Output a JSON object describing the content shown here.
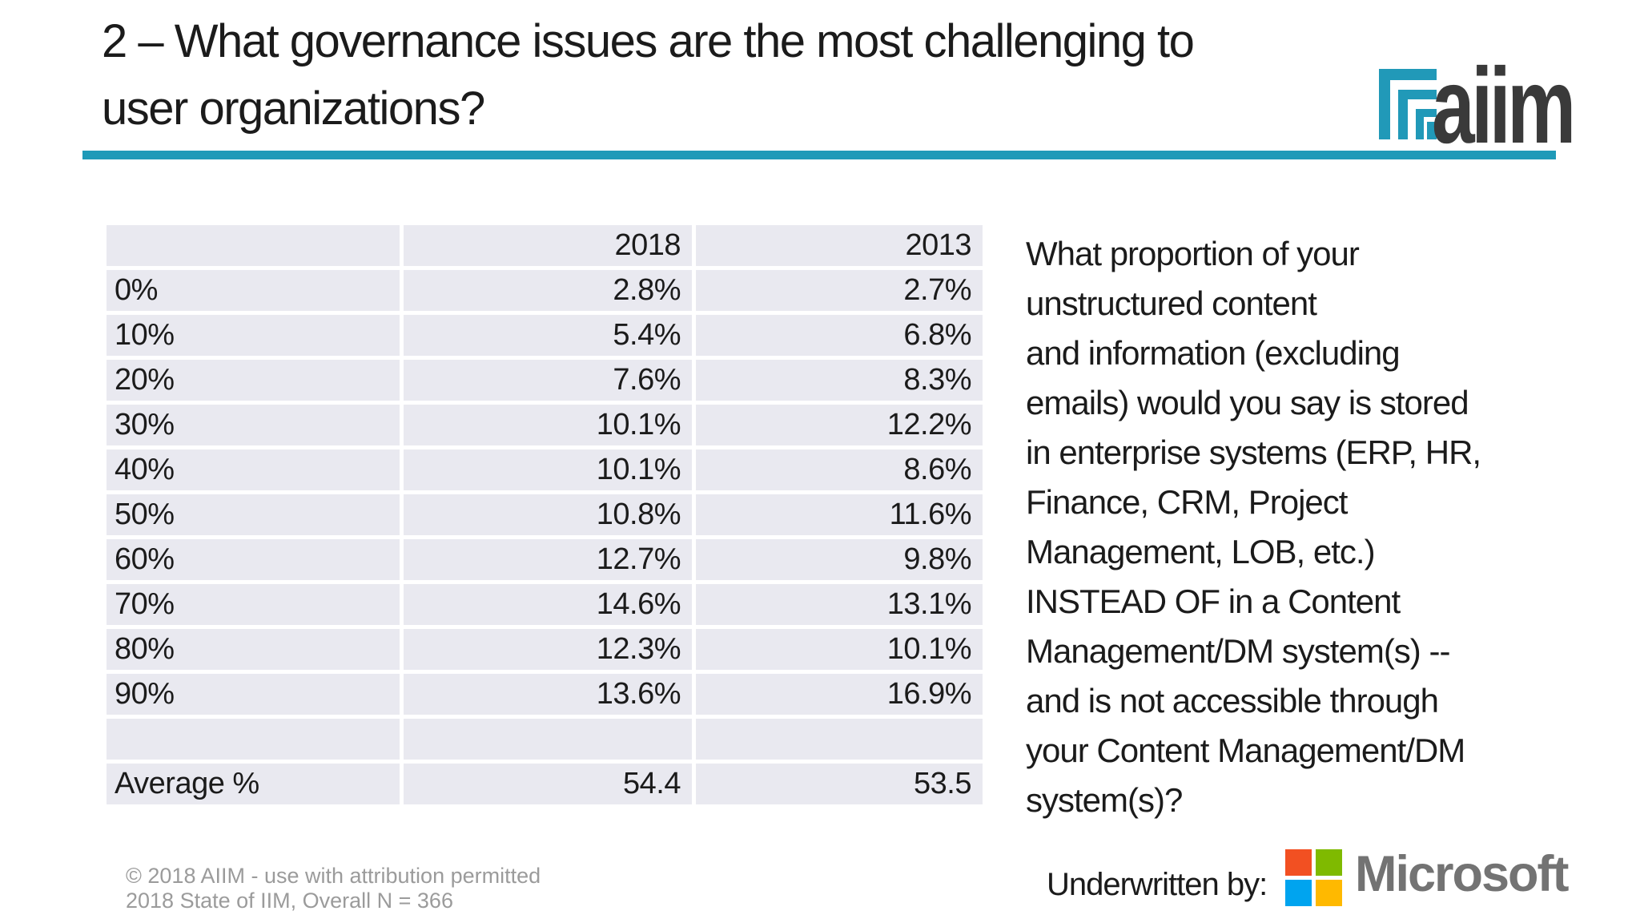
{
  "header": {
    "title": "2 – What governance issues are the most challenging to\nuser organizations?",
    "logo_wordmark": "aiim",
    "accent_color": "#1f9ab8",
    "logo_icon_color": "#2199b8",
    "logo_text_color": "#3a3a3a"
  },
  "table": {
    "cell_bg_color": "#e9e9f0",
    "columns": [
      "",
      "2018",
      "2013"
    ],
    "rows": [
      {
        "label": "0%",
        "y2018": "2.8%",
        "y2013": "2.7%"
      },
      {
        "label": "10%",
        "y2018": "5.4%",
        "y2013": "6.8%"
      },
      {
        "label": "20%",
        "y2018": "7.6%",
        "y2013": "8.3%"
      },
      {
        "label": "30%",
        "y2018": "10.1%",
        "y2013": "12.2%"
      },
      {
        "label": "40%",
        "y2018": "10.1%",
        "y2013": "8.6%"
      },
      {
        "label": "50%",
        "y2018": "10.8%",
        "y2013": "11.6%"
      },
      {
        "label": "60%",
        "y2018": "12.7%",
        "y2013": "9.8%"
      },
      {
        "label": "70%",
        "y2018": "14.6%",
        "y2013": "13.1%"
      },
      {
        "label": "80%",
        "y2018": "12.3%",
        "y2013": "10.1%"
      },
      {
        "label": "90%",
        "y2018": "13.6%",
        "y2013": "16.9%"
      },
      {
        "label": "",
        "y2018": "",
        "y2013": ""
      },
      {
        "label": "Average %",
        "y2018": "54.4",
        "y2013": "53.5"
      }
    ]
  },
  "chart_data": {
    "type": "table",
    "categories": [
      "0%",
      "10%",
      "20%",
      "30%",
      "40%",
      "50%",
      "60%",
      "70%",
      "80%",
      "90%"
    ],
    "series": [
      {
        "name": "2018",
        "values": [
          2.8,
          5.4,
          7.6,
          10.1,
          10.1,
          10.8,
          12.7,
          14.6,
          12.3,
          13.6
        ]
      },
      {
        "name": "2013",
        "values": [
          2.7,
          6.8,
          8.3,
          12.2,
          8.6,
          11.6,
          9.8,
          13.1,
          10.1,
          16.9
        ]
      }
    ],
    "average_row": {
      "label": "Average %",
      "2018": 54.4,
      "2013": 53.5
    }
  },
  "question": {
    "text": "What proportion of your\nunstructured content\nand information (excluding\nemails) would you say is stored\nin enterprise systems (ERP, HR,\nFinance, CRM, Project\nManagement, LOB, etc.)\nINSTEAD OF in a Content\nManagement/DM system(s) --\nand is not accessible through\nyour Content Management/DM\nsystem(s)?"
  },
  "footer": {
    "copyright": "© 2018 AIIM - use with attribution permitted\n2018 State of IIM, Overall N = 366",
    "underwritten_label": "Underwritten by:",
    "microsoft_wordmark": "Microsoft",
    "microsoft_colors": {
      "top_left": "#f25022",
      "top_right": "#7fba00",
      "bottom_left": "#00a4ef",
      "bottom_right": "#ffb900",
      "wordmark": "#737373"
    }
  }
}
